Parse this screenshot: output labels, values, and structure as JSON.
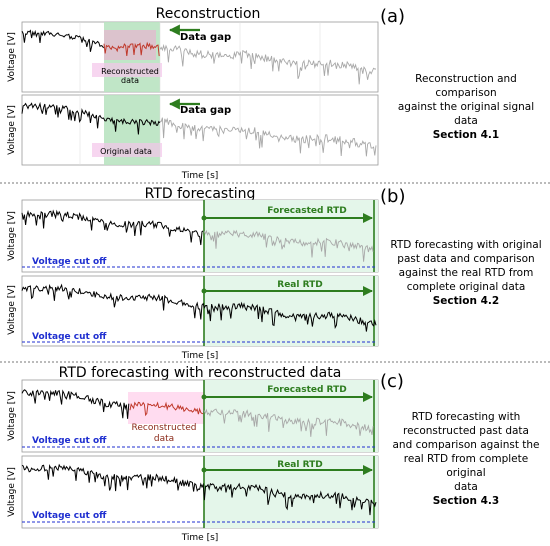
{
  "panels": {
    "a": {
      "label": "(a)",
      "title": "Reconstruction",
      "caption_lines": [
        "Reconstruction and comparison",
        "against the original signal data"
      ],
      "section": "Section 4.1",
      "top_plot": {
        "ylabel": "Voltage [V]",
        "arrow_label": "Data gap",
        "inset_label_lines": [
          "Reconstructed",
          "data"
        ]
      },
      "bottom_plot": {
        "ylabel": "Voltage [V]",
        "arrow_label": "Data gap",
        "inset_label": "Original data"
      },
      "xlabel": "Time [s]"
    },
    "b": {
      "label": "(b)",
      "title": "RTD forecasting",
      "caption_lines": [
        "RTD forecasting with original",
        "past data and comparison",
        "against the real RTD from",
        "complete original data"
      ],
      "section": "Section 4.2",
      "top_plot": {
        "ylabel": "Voltage [V]",
        "arrow_label": "Forecasted RTD",
        "cutoff_label": "Voltage cut off"
      },
      "bottom_plot": {
        "ylabel": "Voltage [V]",
        "arrow_label": "Real RTD",
        "cutoff_label": "Voltage cut off"
      },
      "xlabel": "Time [s]"
    },
    "c": {
      "label": "(c)",
      "title": "RTD forecasting with reconstructed data",
      "caption_lines": [
        "RTD forecasting with",
        "reconstructed past data",
        "and comparison against the",
        "real RTD from complete original",
        "data"
      ],
      "section": "Section 4.3",
      "top_plot": {
        "ylabel": "Voltage [V]",
        "arrow_label": "Forecasted RTD",
        "cutoff_label": "Voltage cut off",
        "inset_label_lines": [
          "Reconstructed",
          "data"
        ]
      },
      "bottom_plot": {
        "ylabel": "Voltage [V]",
        "arrow_label": "Real RTD",
        "cutoff_label": "Voltage cut off"
      },
      "xlabel": "Time [s]"
    }
  },
  "colors": {
    "original_signal": "#000000",
    "future_signal_grey": "#a8a8a8",
    "reconstructed_signal": "#c0392b",
    "data_gap_fill": "#b9e3c1",
    "forecast_fill": "#e4f6ea",
    "arrow_green": "#2e7d1f",
    "cutoff_blue": "#1f2fd0",
    "pink_overlay": "#ff9ad5"
  }
}
